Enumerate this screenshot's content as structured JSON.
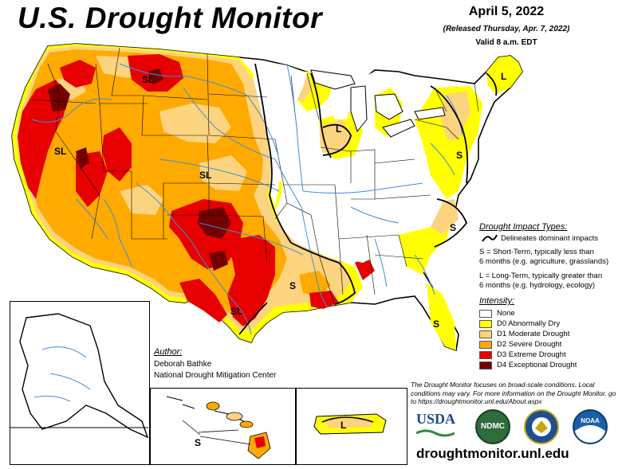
{
  "header": {
    "title": "U.S. Drought Monitor",
    "date": "April 5, 2022",
    "released": "(Released Thursday, Apr. 7, 2022)",
    "valid": "Valid 8 a.m. EDT"
  },
  "impact": {
    "title": "Drought Impact Types:",
    "line_label": "Delineates dominant impacts",
    "s_line1": "S = Short-Term, typically less than",
    "s_line2": "6 months (e.g. agriculture, grasslands)",
    "l_line1": "L = Long-Term, typically greater than",
    "l_line2": "6 months (e.g. hydrology, ecology)"
  },
  "intensity": {
    "title": "Intensity:",
    "items": [
      {
        "label": "None",
        "color": "#ffffff"
      },
      {
        "label": "D0 Abnormally Dry",
        "color": "#ffff00"
      },
      {
        "label": "D1 Moderate Drought",
        "color": "#fcd37f"
      },
      {
        "label": "D2 Severe Drought",
        "color": "#ffaa00"
      },
      {
        "label": "D3 Extreme Drought",
        "color": "#e60000"
      },
      {
        "label": "D4 Exceptional Drought",
        "color": "#730000"
      }
    ]
  },
  "author": {
    "heading": "Author:",
    "name": "Deborah Bathke",
    "org": "National Drought Mitigation Center"
  },
  "note": "The Drought Monitor focuses on broad-scale conditions. Local conditions may vary. For more information on the Drought Monitor, go to https://droughtmonitor.unl.edu/About.aspx",
  "url": "droughtmonitor.unl.edu",
  "map_labels": {
    "sl_montana": "SL",
    "sl_nevada": "SL",
    "sl_colorado": "SL",
    "sl_texas": "SL",
    "l_maine": "L",
    "l_michigan": "L",
    "s_northeast": "S",
    "s_carolina": "S",
    "s_south": "S",
    "s_florida": "S",
    "s_hawaii": "S",
    "l_puerto_rico": "L"
  },
  "logos": {
    "usda": "USDA",
    "ndmc": "NDMC",
    "noaa": "NOAA"
  },
  "colors": {
    "river": "#3c8dd8",
    "boundary": "#000000"
  }
}
